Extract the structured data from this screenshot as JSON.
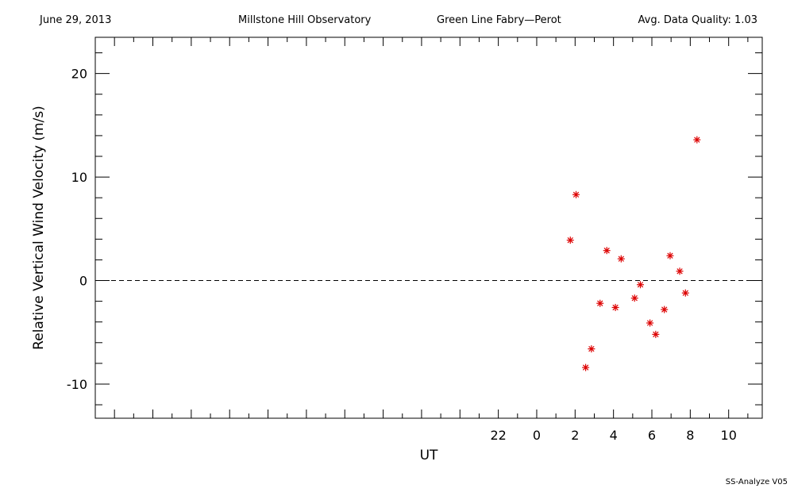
{
  "header": {
    "date": "June 29, 2013",
    "observatory": "Millstone Hill Observatory",
    "instrument": "Green Line Fabry—Perot",
    "quality": "Avg. Data Quality: 1.03"
  },
  "footer": "SS-Analyze V05",
  "colors": {
    "axis": "#000000",
    "marker": "#dd0000"
  },
  "chart_data": {
    "type": "scatter",
    "title": "",
    "xlabel": "UT",
    "ylabel": "Relative Vertical Wind Velocity (m/s)",
    "xlim": [
      -23,
      11.75
    ],
    "ylim": [
      -13.3,
      23.5
    ],
    "xticks": [
      22,
      0,
      2,
      4,
      6,
      8,
      10
    ],
    "yticks": [
      -10,
      0,
      10,
      20
    ],
    "zero_line": "dashed",
    "points": [
      {
        "x": 1.75,
        "y": 3.9
      },
      {
        "x": 2.05,
        "y": 8.3
      },
      {
        "x": 2.55,
        "y": -8.4
      },
      {
        "x": 2.85,
        "y": -6.6
      },
      {
        "x": 3.3,
        "y": -2.2
      },
      {
        "x": 3.65,
        "y": 2.9
      },
      {
        "x": 4.1,
        "y": -2.6
      },
      {
        "x": 4.4,
        "y": 2.1
      },
      {
        "x": 5.1,
        "y": -1.7
      },
      {
        "x": 5.4,
        "y": -0.4
      },
      {
        "x": 5.9,
        "y": -4.1
      },
      {
        "x": 6.2,
        "y": -5.2
      },
      {
        "x": 6.65,
        "y": -2.8
      },
      {
        "x": 6.95,
        "y": 2.4
      },
      {
        "x": 7.45,
        "y": 0.9
      },
      {
        "x": 7.75,
        "y": -1.2
      },
      {
        "x": 8.35,
        "y": 13.6
      }
    ]
  }
}
